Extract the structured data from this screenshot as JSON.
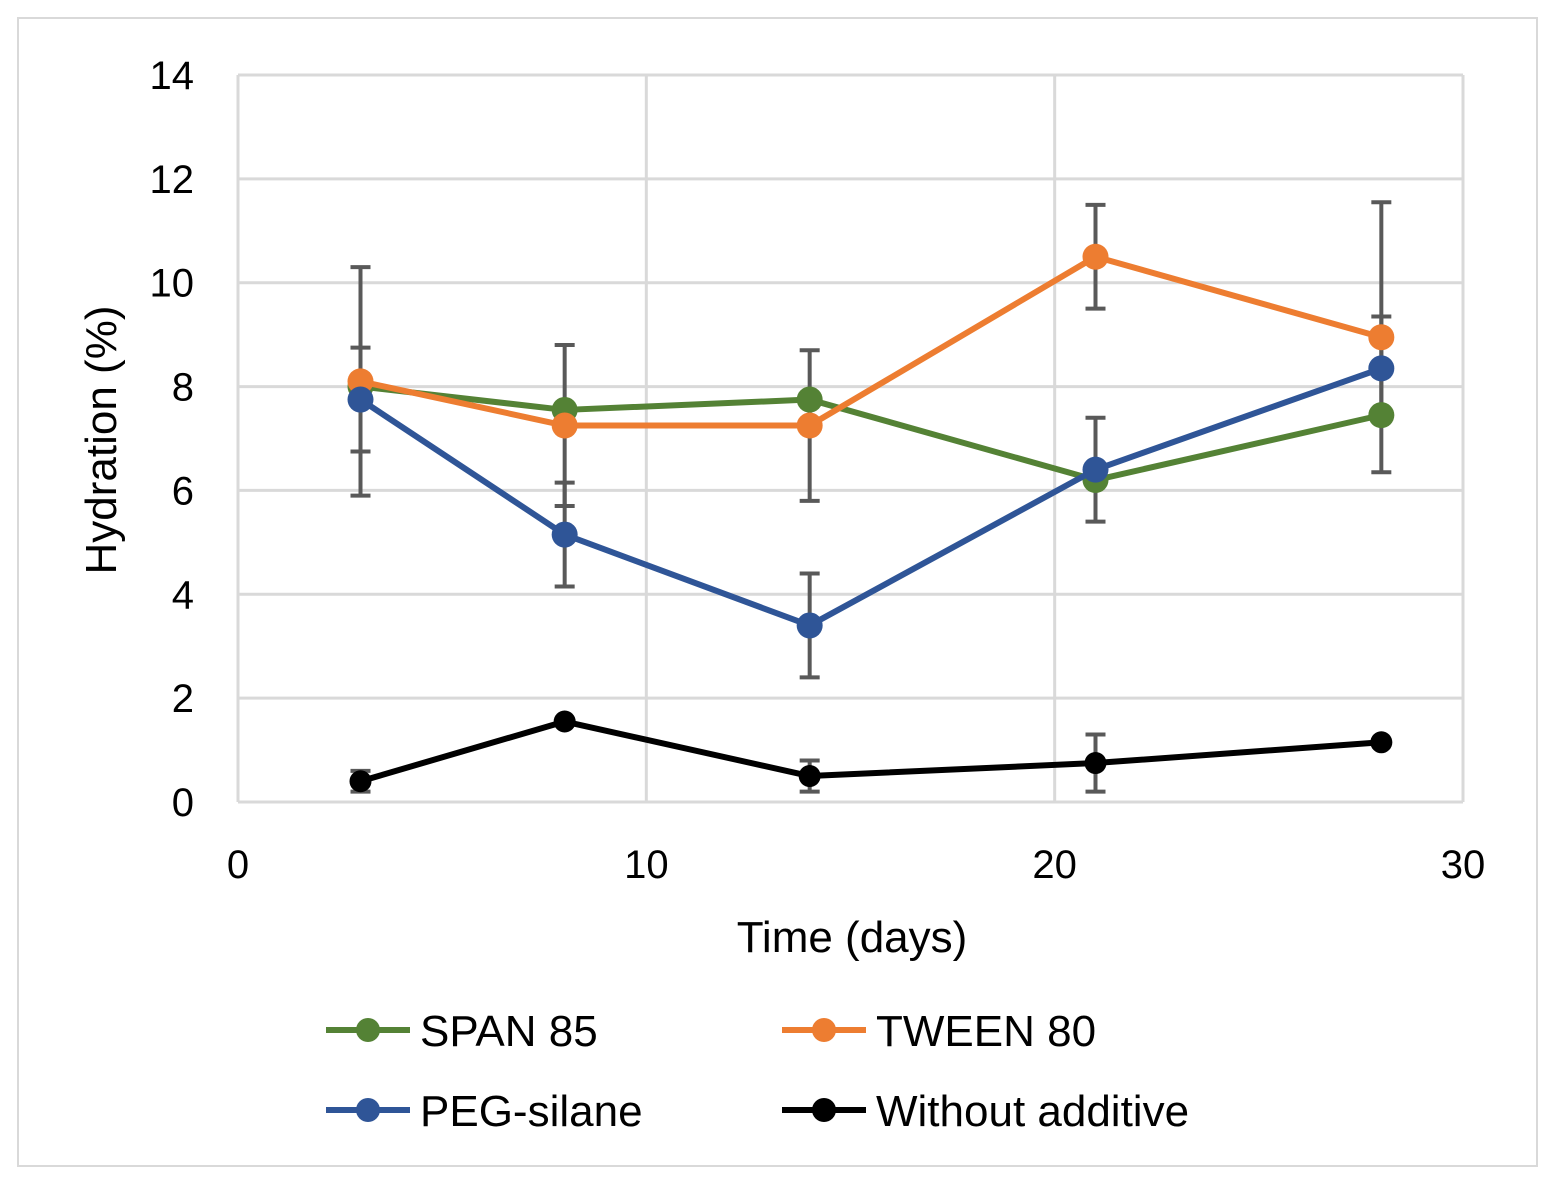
{
  "chart_data": {
    "type": "line",
    "title": "",
    "xlabel": "Time (days)",
    "ylabel": "Hydration (%)",
    "xlim": [
      0,
      30
    ],
    "ylim": [
      0,
      14
    ],
    "xticks": [
      0,
      10,
      20,
      30
    ],
    "yticks": [
      0,
      2,
      4,
      6,
      8,
      10,
      12,
      14
    ],
    "grid": true,
    "legend_position": "bottom",
    "x": [
      3,
      8,
      14,
      21,
      28
    ],
    "series": [
      {
        "name": "SPAN 85",
        "color": "#548235",
        "values": [
          8.0,
          7.55,
          7.75,
          6.2,
          7.45
        ],
        "errors": [
          null,
          null,
          null,
          null,
          null
        ]
      },
      {
        "name": "TWEEN 80",
        "color": "#ed7d31",
        "values": [
          8.1,
          7.25,
          7.25,
          10.5,
          8.95
        ],
        "errors": [
          2.2,
          1.55,
          1.45,
          1.0,
          2.6
        ]
      },
      {
        "name": "PEG-silane",
        "color": "#2f5597",
        "values": [
          7.75,
          5.15,
          3.4,
          6.4,
          8.35
        ],
        "errors": [
          1.0,
          1.0,
          1.0,
          1.0,
          1.0
        ]
      },
      {
        "name": "Without additive",
        "color": "#000000",
        "values": [
          0.4,
          1.55,
          0.5,
          0.75,
          1.15
        ],
        "errors": [
          0.2,
          null,
          0.3,
          0.55,
          null
        ]
      }
    ]
  }
}
